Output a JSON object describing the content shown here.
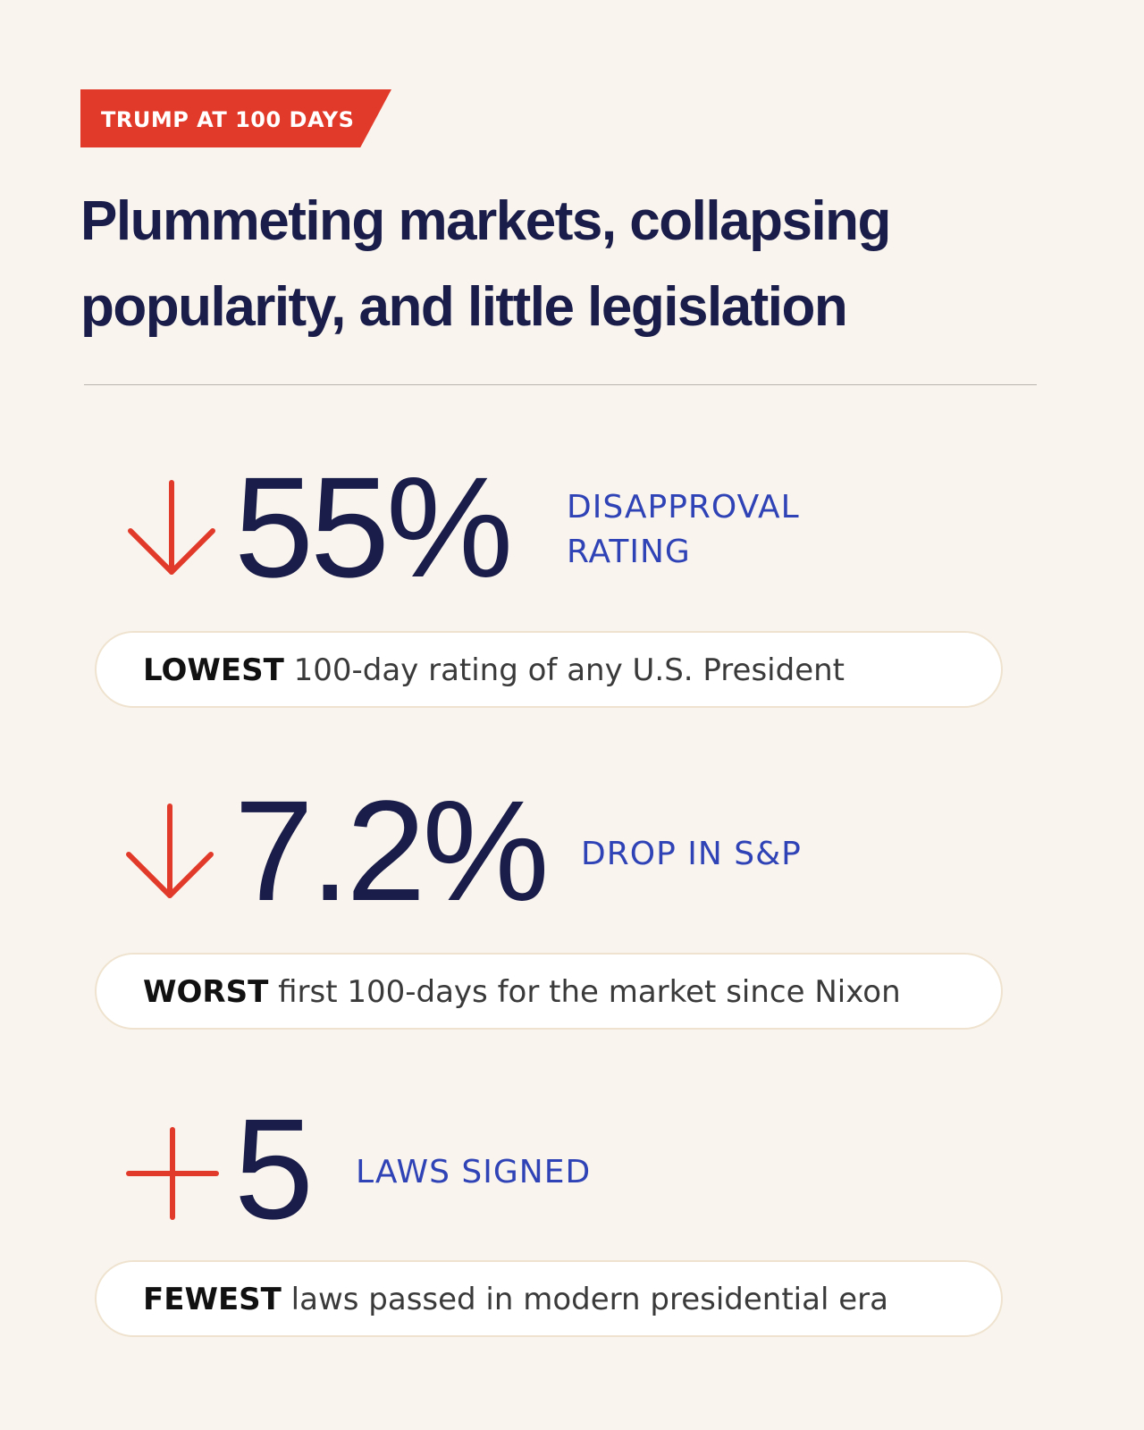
{
  "tag": {
    "label": "TRUMP AT 100 DAYS"
  },
  "headline": "Plummeting markets, collapsing popularity, and little legislation",
  "colors": {
    "background": "#f9f5ee",
    "tag": "#e23a2a",
    "headline": "#1a1c49",
    "label": "#2f42b6",
    "icon": "#e23a2a"
  },
  "stats": [
    {
      "icon": "down-arrow-icon",
      "value": "55%",
      "label_line1": "DISAPPROVAL",
      "label_line2": "RATING",
      "pill_strong": "LOWEST",
      "pill_text": "100-day rating of any U.S. President"
    },
    {
      "icon": "down-arrow-icon",
      "value": "7.2%",
      "label_line1": "DROP IN S&P",
      "pill_strong": "WORST",
      "pill_text": "first 100-days for the market since Nixon"
    },
    {
      "icon": "plus-icon",
      "value": "5",
      "label_line1": "LAWS SIGNED",
      "pill_strong": "FEWEST",
      "pill_text": "laws passed in modern presidential era"
    }
  ]
}
